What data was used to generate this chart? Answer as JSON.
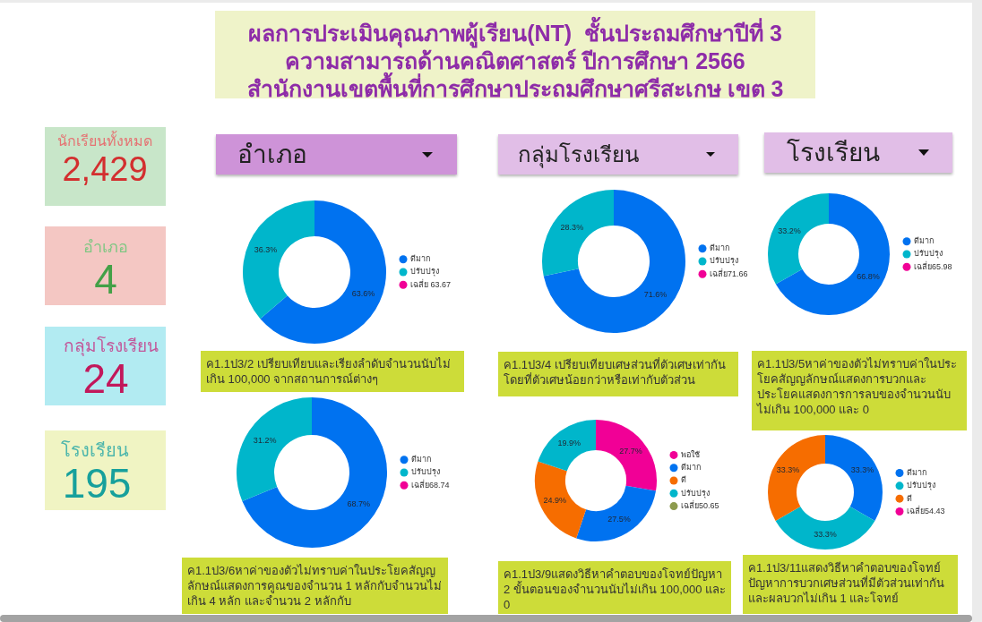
{
  "chart_data": [
    {
      "type": "other",
      "title": "ผลการประเมินคุณภาพผู้เรียน(NT)  ชั้นประถมศึกษาปีที่ 3\nความสามารถด้านคณิตศาสตร์ ปีการศึกษา 2566\nสำนักงานเขตพื้นที่การศึกษาประถมศึกษาศรีสะเกษ เขต 3"
    },
    {
      "type": "other",
      "title": "นักเรียนทั้งหมด",
      "annotations": [
        "2,429"
      ]
    },
    {
      "type": "other",
      "title": "อำเภอ",
      "annotations": [
        "4"
      ]
    },
    {
      "type": "other",
      "title": "กลุ่มโรงเรียน",
      "annotations": [
        "24"
      ]
    },
    {
      "type": "other",
      "title": "โรงเรียน",
      "annotations": [
        "195"
      ]
    },
    {
      "type": "other",
      "annotations": [
        "อำเภอ",
        "กลุ่มโรงเรียน",
        "โรงเรียน"
      ]
    },
    {
      "type": "donut",
      "categories": [
        "ดีมาก",
        "ปรับปรุง",
        "เฉลี่ย 63.67"
      ],
      "values": [
        63.6,
        36.3,
        0
      ],
      "colors": [
        "#0072f0",
        "#00b6cb",
        "#f10096"
      ],
      "value_labels": [
        "63.6%",
        "36.3%",
        null
      ],
      "legend": "right",
      "annotations": [
        "ค1.1ป3/2 เปรียบเทียบและเรียงลำดับจำนวนนับไม่เกิน 100,000 จากสถานการณ์ต่างๆ"
      ]
    },
    {
      "type": "donut",
      "categories": [
        "ดีมาก",
        "ปรับปรุง",
        "เฉลี่ย71.66"
      ],
      "values": [
        71.6,
        28.3,
        0
      ],
      "colors": [
        "#0072f0",
        "#00b6cb",
        "#f10096"
      ],
      "value_labels": [
        "71.6%",
        "28.3%",
        null
      ],
      "legend": "right",
      "annotations": [
        "ค1.1ป3/4 เปรียบเทียบเศษส่วนที่ตัวเศษเท่ากัน โดยที่ตัวเศษน้อยกว่าหรือเท่ากับตัวส่วน"
      ]
    },
    {
      "type": "donut",
      "categories": [
        "ดีมาก",
        "ปรับปรุง",
        "เฉลี่ย65.98"
      ],
      "values": [
        66.8,
        33.2,
        0
      ],
      "colors": [
        "#0072f0",
        "#00b6cb",
        "#f10096"
      ],
      "value_labels": [
        "66.8%",
        "33.2%",
        null
      ],
      "legend": "right",
      "annotations": [
        "ค1.1ป3/5หาค่าของตัวไม่ทราบค่าในประโยคสัญญลักษณ์แสดงการบวกและประโยคแสดงการการลบของจำนวนนับไม่เกิน 100,000 และ 0"
      ]
    },
    {
      "type": "donut",
      "categories": [
        "ดีมาก",
        "ปรับปรุง",
        "เฉลี่ย68.74"
      ],
      "values": [
        68.7,
        31.2,
        0
      ],
      "colors": [
        "#0072f0",
        "#00b6cb",
        "#f10096"
      ],
      "value_labels": [
        "68.7%",
        "31.2%",
        null
      ],
      "legend": "right",
      "annotations": [
        "ค1.1ป3/6หาค่าของตัวไม่ทราบค่าในประโยคสัญญลักษณ์แสดงการคูณของจำนวน 1 หลักกับจำนวนไม่เกิน 4 หลัก และจำนวน 2 หลักกับ"
      ]
    },
    {
      "type": "donut",
      "categories": [
        "พอใช้",
        "ดีมาก",
        "ดี",
        "ปรับปรุง",
        "เฉลี่ย50.65"
      ],
      "values": [
        27.7,
        27.5,
        24.9,
        19.9,
        0
      ],
      "colors": [
        "#f10096",
        "#0072f0",
        "#f66d00",
        "#00b6cb",
        "#8d9b4e"
      ],
      "value_labels": [
        "27.7%",
        "27.5%",
        "24.9%",
        "19.9%",
        null
      ],
      "legend": "right",
      "annotations": [
        "ค1.1ป3/9แสดงวิธีหาคำตอบของโจทย์ปัญหา 2 ขั้นตอนของจำนวนนับไม่เกิน 100,000 และ 0"
      ]
    },
    {
      "type": "donut",
      "categories": [
        "ดีมาก",
        "ปรับปรุง",
        "ดี",
        "เฉลี่ย54.43"
      ],
      "values": [
        33.3,
        33.3,
        33.3,
        0
      ],
      "colors": [
        "#0072f0",
        "#00b6cb",
        "#f66d00",
        "#f10096"
      ],
      "value_labels": [
        "33.3%",
        "33.3%",
        "33.3%",
        null
      ],
      "legend": "right",
      "annotations": [
        "ค1.1ป3/11แสดงวิธีหาคำตอบของโจทย์ปัญหาการบวกเศษส่วนที่มีตัวส่วนเท่ากันและผลบวกไม่เกิน 1 และโจทย์"
      ]
    }
  ]
}
